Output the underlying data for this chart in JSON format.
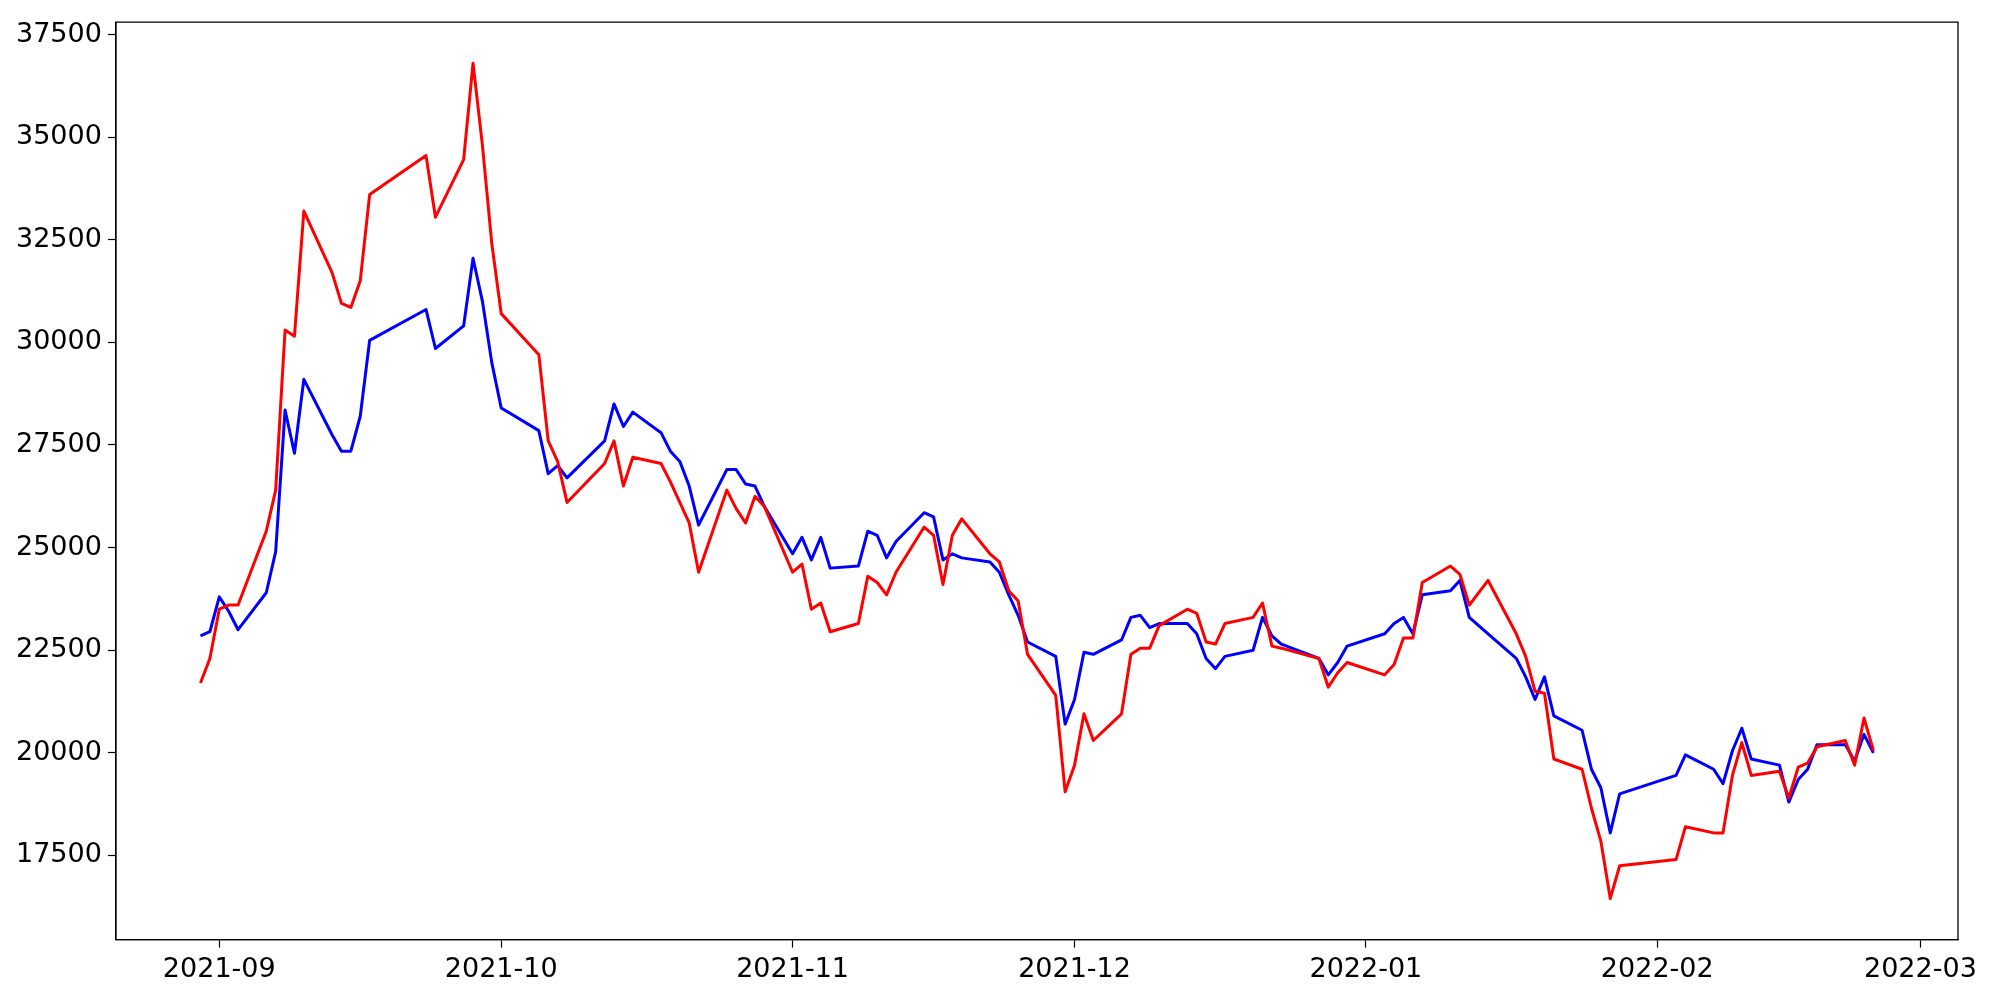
{
  "chart_data": {
    "type": "line",
    "x": [
      "2021-08-30",
      "2021-08-31",
      "2021-09-01",
      "2021-09-02",
      "2021-09-03",
      "2021-09-06",
      "2021-09-07",
      "2021-09-08",
      "2021-09-09",
      "2021-09-10",
      "2021-09-13",
      "2021-09-14",
      "2021-09-15",
      "2021-09-16",
      "2021-09-17",
      "2021-09-23",
      "2021-09-24",
      "2021-09-27",
      "2021-09-28",
      "2021-09-29",
      "2021-09-30",
      "2021-10-01",
      "2021-10-05",
      "2021-10-06",
      "2021-10-07",
      "2021-10-08",
      "2021-10-12",
      "2021-10-13",
      "2021-10-14",
      "2021-10-15",
      "2021-10-18",
      "2021-10-19",
      "2021-10-20",
      "2021-10-21",
      "2021-10-22",
      "2021-10-25",
      "2021-10-26",
      "2021-10-27",
      "2021-10-28",
      "2021-10-29",
      "2021-11-01",
      "2021-11-02",
      "2021-11-03",
      "2021-11-04",
      "2021-11-05",
      "2021-11-08",
      "2021-11-09",
      "2021-11-10",
      "2021-11-11",
      "2021-11-12",
      "2021-11-15",
      "2021-11-16",
      "2021-11-17",
      "2021-11-18",
      "2021-11-19",
      "2021-11-22",
      "2021-11-23",
      "2021-11-24",
      "2021-11-25",
      "2021-11-26",
      "2021-11-29",
      "2021-11-30",
      "2021-12-01",
      "2021-12-02",
      "2021-12-03",
      "2021-12-06",
      "2021-12-07",
      "2021-12-08",
      "2021-12-09",
      "2021-12-10",
      "2021-12-13",
      "2021-12-14",
      "2021-12-15",
      "2021-12-16",
      "2021-12-17",
      "2021-12-20",
      "2021-12-21",
      "2021-12-22",
      "2021-12-23",
      "2021-12-27",
      "2021-12-28",
      "2021-12-29",
      "2021-12-30",
      "2022-01-03",
      "2022-01-04",
      "2022-01-05",
      "2022-01-06",
      "2022-01-07",
      "2022-01-10",
      "2022-01-11",
      "2022-01-12",
      "2022-01-14",
      "2022-01-17",
      "2022-01-18",
      "2022-01-19",
      "2022-01-20",
      "2022-01-21",
      "2022-01-24",
      "2022-01-25",
      "2022-01-26",
      "2022-01-27",
      "2022-01-28",
      "2022-02-03",
      "2022-02-04",
      "2022-02-07",
      "2022-02-08",
      "2022-02-09",
      "2022-02-10",
      "2022-02-11",
      "2022-02-14",
      "2022-02-15",
      "2022-02-16",
      "2022-02-17",
      "2022-02-18",
      "2022-02-21",
      "2022-02-22",
      "2022-02-23",
      "2022-02-24"
    ],
    "series": [
      {
        "color": "#ff0000",
        "values": [
          21700,
          22300,
          23500,
          23600,
          23600,
          25400,
          26400,
          30300,
          30150,
          33200,
          31700,
          30950,
          30850,
          31500,
          33600,
          34550,
          33050,
          34450,
          36800,
          34800,
          32400,
          30700,
          29700,
          27600,
          27100,
          26100,
          27050,
          27600,
          26500,
          27200,
          27050,
          26600,
          26100,
          25600,
          24400,
          26400,
          25950,
          25600,
          26250,
          26000,
          24400,
          24600,
          23500,
          23650,
          22950,
          23150,
          24300,
          24150,
          23850,
          24400,
          25500,
          25300,
          24100,
          25300,
          25700,
          24850,
          24650,
          23950,
          23700,
          22400,
          21400,
          19050,
          19700,
          20950,
          20300,
          20950,
          22400,
          22550,
          22550,
          23100,
          23500,
          23400,
          22700,
          22650,
          23150,
          23300,
          23650,
          22600,
          22550,
          22300,
          21600,
          21950,
          22200,
          21900,
          22150,
          22800,
          22800,
          24150,
          24550,
          24350,
          23600,
          24200,
          22900,
          22350,
          21500,
          21450,
          19850,
          19600,
          18650,
          17850,
          16450,
          17250,
          17400,
          18200,
          18050,
          18050,
          19450,
          20250,
          19450,
          19550,
          18900,
          19650,
          19750,
          20150,
          20300,
          19700,
          20850,
          20050
        ]
      },
      {
        "color": "#0000ff",
        "values": [
          22850,
          22950,
          23800,
          23450,
          23000,
          23900,
          24900,
          28350,
          27300,
          29100,
          27750,
          27350,
          27350,
          28200,
          30050,
          30800,
          29850,
          30400,
          32050,
          31000,
          29500,
          28400,
          27850,
          26800,
          27000,
          26700,
          27600,
          28500,
          27950,
          28300,
          27800,
          27350,
          27100,
          26500,
          25550,
          26900,
          26900,
          26550,
          26500,
          26000,
          24850,
          25250,
          24700,
          25250,
          24500,
          24550,
          25400,
          25300,
          24750,
          25150,
          25850,
          25750,
          24700,
          24850,
          24750,
          24650,
          24400,
          23850,
          23350,
          22700,
          22350,
          20700,
          21300,
          22450,
          22400,
          22750,
          23300,
          23350,
          23050,
          23150,
          23150,
          22900,
          22300,
          22050,
          22350,
          22500,
          23300,
          22850,
          22650,
          22300,
          21900,
          22200,
          22600,
          22900,
          23150,
          23300,
          22900,
          23850,
          23950,
          24200,
          23300,
          22900,
          22300,
          21850,
          21300,
          21850,
          20900,
          20550,
          19600,
          19150,
          18050,
          19000,
          19450,
          19950,
          19600,
          19250,
          20050,
          20600,
          19850,
          19700,
          18800,
          19350,
          19600,
          20200,
          20200,
          19800,
          20450,
          20000
        ]
      }
    ],
    "xlim": [
      "2021-08-21",
      "2022-03-05"
    ],
    "xticks": [
      "2021-09",
      "2021-10",
      "2021-11",
      "2021-12",
      "2022-01",
      "2022-02",
      "2022-03"
    ],
    "ylim": [
      15450,
      37800
    ],
    "yticks": [
      17500,
      20000,
      22500,
      25000,
      27500,
      30000,
      32500,
      35000,
      37500
    ],
    "grid": false,
    "legend": false,
    "marker": "none",
    "line_style": "solid"
  }
}
